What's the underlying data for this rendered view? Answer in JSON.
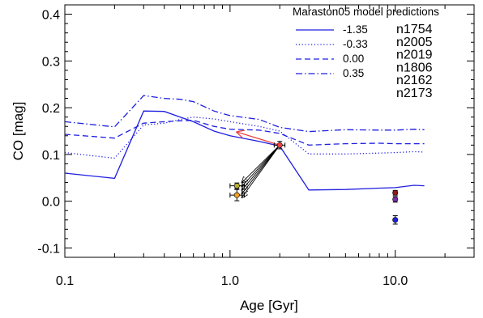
{
  "chart_data": {
    "type": "line",
    "xlabel": "Age [Gyr]",
    "ylabel": "CO [mag]",
    "xscale": "log",
    "xlim": [
      0.1,
      30
    ],
    "ylim": [
      -0.12,
      0.42
    ],
    "xticks": [
      0.1,
      1.0,
      10.0
    ],
    "xtick_labels": [
      "0.1",
      "1.0",
      "10.0"
    ],
    "yticks": [
      -0.1,
      0.0,
      0.1,
      0.2,
      0.3,
      0.4
    ],
    "ytick_labels": [
      "-0.1",
      "0.0",
      "0.1",
      "0.2",
      "0.3",
      "0.4"
    ],
    "legend_title": "Maraston05 model predictions",
    "legend_position": "top-right",
    "series": [
      {
        "name": "-1.35",
        "style": "solid",
        "color": "#1f1fe0",
        "x": [
          0.1,
          0.2,
          0.3,
          0.4,
          0.5,
          0.6,
          0.8,
          1.0,
          1.5,
          2.0,
          3.0,
          5.0,
          8.0,
          10.0,
          13.0,
          15.0
        ],
        "y": [
          0.06,
          0.049,
          0.193,
          0.192,
          0.18,
          0.17,
          0.15,
          0.14,
          0.128,
          0.118,
          0.024,
          0.025,
          0.028,
          0.029,
          0.034,
          0.033
        ]
      },
      {
        "name": "-0.33",
        "style": "dotted",
        "color": "#1f1fe0",
        "x": [
          0.1,
          0.2,
          0.3,
          0.4,
          0.5,
          0.6,
          0.8,
          1.0,
          1.5,
          2.0,
          3.0,
          5.0,
          8.0,
          10.0,
          13.0,
          15.0
        ],
        "y": [
          0.104,
          0.092,
          0.163,
          0.167,
          0.175,
          0.18,
          0.176,
          0.17,
          0.16,
          0.15,
          0.101,
          0.101,
          0.103,
          0.104,
          0.106,
          0.105
        ]
      },
      {
        "name": "0.00",
        "style": "dashed",
        "color": "#1f1fe0",
        "x": [
          0.1,
          0.2,
          0.3,
          0.4,
          0.5,
          0.6,
          0.8,
          1.0,
          1.5,
          2.0,
          3.0,
          5.0,
          8.0,
          10.0,
          13.0,
          15.0
        ],
        "y": [
          0.143,
          0.135,
          0.167,
          0.17,
          0.172,
          0.173,
          0.16,
          0.154,
          0.152,
          0.145,
          0.12,
          0.123,
          0.124,
          0.123,
          0.123,
          0.123
        ]
      },
      {
        "name": "0.35",
        "style": "dashdot",
        "color": "#1f1fe0",
        "x": [
          0.1,
          0.2,
          0.3,
          0.4,
          0.5,
          0.6,
          0.8,
          1.0,
          1.5,
          2.0,
          3.0,
          5.0,
          8.0,
          10.0,
          13.0,
          15.0
        ],
        "y": [
          0.17,
          0.159,
          0.226,
          0.22,
          0.218,
          0.213,
          0.193,
          0.183,
          0.175,
          0.158,
          0.149,
          0.153,
          0.152,
          0.152,
          0.154,
          0.153
        ]
      }
    ],
    "clusters": [
      {
        "name": "n1754",
        "color": "#1f1fe0"
      },
      {
        "name": "n2005",
        "color": "#8c1a1a"
      },
      {
        "name": "n2019",
        "color": "#7a2fa8"
      },
      {
        "name": "n1806",
        "color": "#b8b030"
      },
      {
        "name": "n2162",
        "color": "#f0a020"
      },
      {
        "name": "n2173",
        "color": "#f04040"
      }
    ],
    "points": [
      {
        "label": "n1754",
        "x": 10.0,
        "y": -0.04,
        "yerr": 0.009,
        "color": "#1f1fe0"
      },
      {
        "label": "n2005",
        "x": 10.0,
        "y": 0.018,
        "yerr": 0.005,
        "color": "#8c1a1a"
      },
      {
        "label": "n2019",
        "x": 10.0,
        "y": 0.004,
        "yerr": 0.006,
        "color": "#7a2fa8"
      },
      {
        "label": "n1806",
        "x": 1.1,
        "y": 0.033,
        "yerr": 0.006,
        "xerr": [
          1.0,
          1.22
        ],
        "color": "#b8b030"
      },
      {
        "label": "n2162",
        "x": 1.1,
        "y": 0.013,
        "yerr": 0.012,
        "xerr": [
          1.0,
          1.22
        ],
        "color": "#f0a020"
      },
      {
        "label": "n2173",
        "x": 2.0,
        "y": 0.12,
        "yerr": 0.008,
        "xerr": [
          1.85,
          2.15
        ],
        "color": "#f04040"
      }
    ],
    "arrows": [
      {
        "from": [
          2.0,
          0.12
        ],
        "to": [
          1.1,
          0.148
        ],
        "color": "#f04040"
      },
      {
        "from": [
          2.0,
          0.12
        ],
        "to": [
          1.18,
          0.04
        ],
        "color": "#000000"
      },
      {
        "from": [
          2.0,
          0.12
        ],
        "to": [
          1.18,
          0.032
        ],
        "color": "#000000"
      },
      {
        "from": [
          2.0,
          0.12
        ],
        "to": [
          1.18,
          0.024
        ],
        "color": "#000000"
      },
      {
        "from": [
          2.0,
          0.12
        ],
        "to": [
          1.18,
          0.016
        ],
        "color": "#000000"
      },
      {
        "from": [
          2.0,
          0.12
        ],
        "to": [
          1.18,
          0.008
        ],
        "color": "#000000"
      }
    ]
  }
}
